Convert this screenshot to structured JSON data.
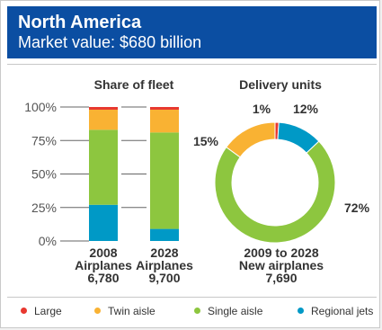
{
  "header": {
    "title": "North America",
    "subtitle": "Market value: $680 billion"
  },
  "colors": {
    "large": "#e8382f",
    "twin_aisle": "#f9b233",
    "single_aisle": "#8dc63f",
    "regional_jets": "#0099c6",
    "header_bg": "#0b4ea2"
  },
  "legend": [
    {
      "key": "large",
      "label": "Large"
    },
    {
      "key": "twin_aisle",
      "label": "Twin aisle"
    },
    {
      "key": "single_aisle",
      "label": "Single aisle"
    },
    {
      "key": "regional_jets",
      "label": "Regional jets"
    }
  ],
  "chart_data": [
    {
      "type": "bar",
      "stacked": true,
      "title": "Share of fleet",
      "y_ticks": [
        "100%",
        "75%",
        "50%",
        "25%",
        "0%"
      ],
      "ylim": [
        0,
        100
      ],
      "categories": [
        {
          "lines": [
            "2008",
            "Airplanes",
            "6,780"
          ]
        },
        {
          "lines": [
            "2028",
            "Airplanes",
            "9,700"
          ]
        }
      ],
      "series": [
        {
          "name": "Regional jets",
          "key": "regional_jets",
          "values": [
            27,
            9
          ]
        },
        {
          "name": "Single aisle",
          "key": "single_aisle",
          "values": [
            56,
            72
          ]
        },
        {
          "name": "Twin aisle",
          "key": "twin_aisle",
          "values": [
            15,
            17
          ]
        },
        {
          "name": "Large",
          "key": "large",
          "values": [
            2,
            2
          ]
        }
      ]
    },
    {
      "type": "pie",
      "donut": true,
      "title": "Delivery units",
      "center_caption": [
        "2009 to 2028",
        "New airplanes",
        "7,690"
      ],
      "slices": [
        {
          "name": "Large",
          "key": "large",
          "value": 1,
          "label": "1%"
        },
        {
          "name": "Regional jets",
          "key": "regional_jets",
          "value": 12,
          "label": "12%"
        },
        {
          "name": "Single aisle",
          "key": "single_aisle",
          "value": 72,
          "label": "72%"
        },
        {
          "name": "Twin aisle",
          "key": "twin_aisle",
          "value": 15,
          "label": "15%"
        }
      ]
    }
  ]
}
